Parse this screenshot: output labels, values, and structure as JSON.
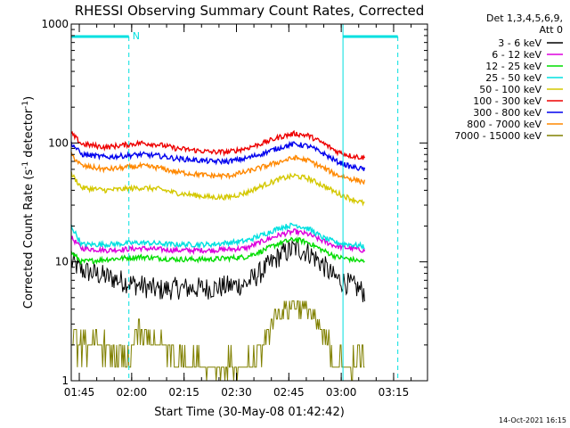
{
  "chart_data": {
    "type": "line",
    "title": "RHESSI Observing Summary Count Rates, Corrected",
    "xlabel": "Start Time (30-May-08 01:42:42)",
    "ylabel_main": "Corrected Count Rate (s",
    "ylabel_sup1": "-1",
    "ylabel_mid": " detector",
    "ylabel_sup2": "-1",
    "ylabel_end": ")",
    "yscale": "log",
    "ylim": [
      1,
      1000
    ],
    "xlim_minutes": [
      0,
      102
    ],
    "x_unit": "minutes after 01:42:42",
    "x_ticks": [
      {
        "min": 2.3,
        "label": "01:45"
      },
      {
        "min": 17.3,
        "label": "02:00"
      },
      {
        "min": 32.3,
        "label": "02:15"
      },
      {
        "min": 47.3,
        "label": "02:30"
      },
      {
        "min": 62.3,
        "label": "02:45"
      },
      {
        "min": 77.3,
        "label": "03:00"
      },
      {
        "min": 92.3,
        "label": "03:15"
      }
    ],
    "y_ticks": [
      {
        "value": 1,
        "label": "1"
      },
      {
        "value": 10,
        "label": "10"
      },
      {
        "value": 100,
        "label": "100"
      },
      {
        "value": 1000,
        "label": "1000"
      }
    ],
    "legend_header": [
      "Det 1,3,4,5,6,9,",
      "Att 0"
    ],
    "legend_position": "right",
    "series": [
      {
        "name": "3 - 6 keV",
        "color": "#000000",
        "x": [
          0,
          3,
          10,
          18,
          25,
          30,
          40,
          50,
          55,
          60,
          64,
          68,
          72,
          75,
          78,
          82,
          84
        ],
        "values": [
          10,
          8.5,
          7.5,
          6.5,
          5.8,
          6.0,
          6.0,
          6.5,
          8.5,
          11.5,
          13,
          12,
          9.5,
          7.5,
          6.8,
          6.0,
          5.5
        ]
      },
      {
        "name": "6 - 12 keV",
        "color": "#dd00dd",
        "x": [
          0,
          3,
          10,
          20,
          30,
          40,
          50,
          55,
          60,
          64,
          68,
          72,
          76,
          80,
          84
        ],
        "values": [
          16,
          13,
          12.5,
          13,
          12.5,
          12.5,
          13,
          15,
          17,
          18,
          17,
          15,
          13.5,
          13,
          12.5
        ]
      },
      {
        "name": "12 - 25 keV",
        "color": "#00dd00",
        "x": [
          0,
          3,
          10,
          20,
          30,
          40,
          50,
          55,
          60,
          64,
          68,
          72,
          76,
          80,
          84
        ],
        "values": [
          12,
          10,
          10.5,
          11,
          10.5,
          10.5,
          11,
          12.5,
          14.5,
          15.5,
          14.5,
          12.5,
          11,
          10.5,
          10
        ]
      },
      {
        "name": "25 - 50 keV",
        "color": "#00e0e0",
        "x": [
          0,
          3,
          10,
          20,
          30,
          40,
          50,
          55,
          60,
          64,
          68,
          72,
          76,
          80,
          84
        ],
        "values": [
          20,
          14,
          14,
          14.5,
          14,
          14,
          15,
          17,
          19.5,
          20.5,
          19,
          16,
          14.5,
          14,
          13.5
        ]
      },
      {
        "name": "50 - 100 keV",
        "color": "#d4c800",
        "x": [
          0,
          3,
          10,
          20,
          25,
          30,
          40,
          45,
          50,
          55,
          60,
          64,
          68,
          72,
          76,
          80,
          84
        ],
        "values": [
          55,
          42,
          40,
          42,
          41,
          38,
          35,
          35,
          38,
          44,
          50,
          53,
          50,
          44,
          38,
          34,
          31
        ]
      },
      {
        "name": "100 - 300 keV",
        "color": "#ee0000",
        "x": [
          0,
          3,
          10,
          20,
          25,
          30,
          40,
          45,
          50,
          55,
          60,
          64,
          68,
          72,
          76,
          80,
          84
        ],
        "values": [
          120,
          98,
          92,
          100,
          97,
          90,
          84,
          84,
          90,
          100,
          113,
          120,
          115,
          100,
          85,
          78,
          75
        ]
      },
      {
        "name": "300 - 800 keV",
        "color": "#0000ee",
        "x": [
          0,
          3,
          10,
          20,
          25,
          30,
          40,
          45,
          50,
          55,
          60,
          64,
          68,
          72,
          76,
          80,
          84
        ],
        "values": [
          100,
          80,
          76,
          80,
          78,
          74,
          70,
          70,
          74,
          82,
          92,
          98,
          94,
          82,
          70,
          63,
          60
        ]
      },
      {
        "name": "800 - 7000 keV",
        "color": "#ff8800",
        "x": [
          0,
          3,
          10,
          20,
          25,
          30,
          40,
          45,
          50,
          55,
          60,
          64,
          68,
          72,
          76,
          80,
          84
        ],
        "values": [
          80,
          64,
          60,
          64,
          62,
          57,
          53,
          53,
          57,
          63,
          70,
          75,
          71,
          62,
          54,
          50,
          47
        ]
      },
      {
        "name": "7000 - 15000 keV",
        "color": "#808000",
        "x": [
          0,
          10,
          17,
          18,
          28,
          30,
          40,
          50,
          55,
          58,
          64,
          68,
          72,
          76,
          80,
          84
        ],
        "values": [
          2.0,
          2.0,
          1.3,
          2.7,
          1.8,
          1.6,
          1.4,
          1.3,
          2.0,
          3.5,
          4.5,
          4.0,
          2.4,
          1.5,
          1.3,
          1.8
        ]
      }
    ],
    "attenuator_markers": {
      "color": "#00e0e0",
      "segments": [
        {
          "start": 0,
          "end": 16.5,
          "label": "N"
        },
        {
          "start": 77.8,
          "end": 93.5,
          "label": ""
        }
      ]
    }
  },
  "footer": {
    "timestamp": "14-Oct-2021 16:15"
  }
}
